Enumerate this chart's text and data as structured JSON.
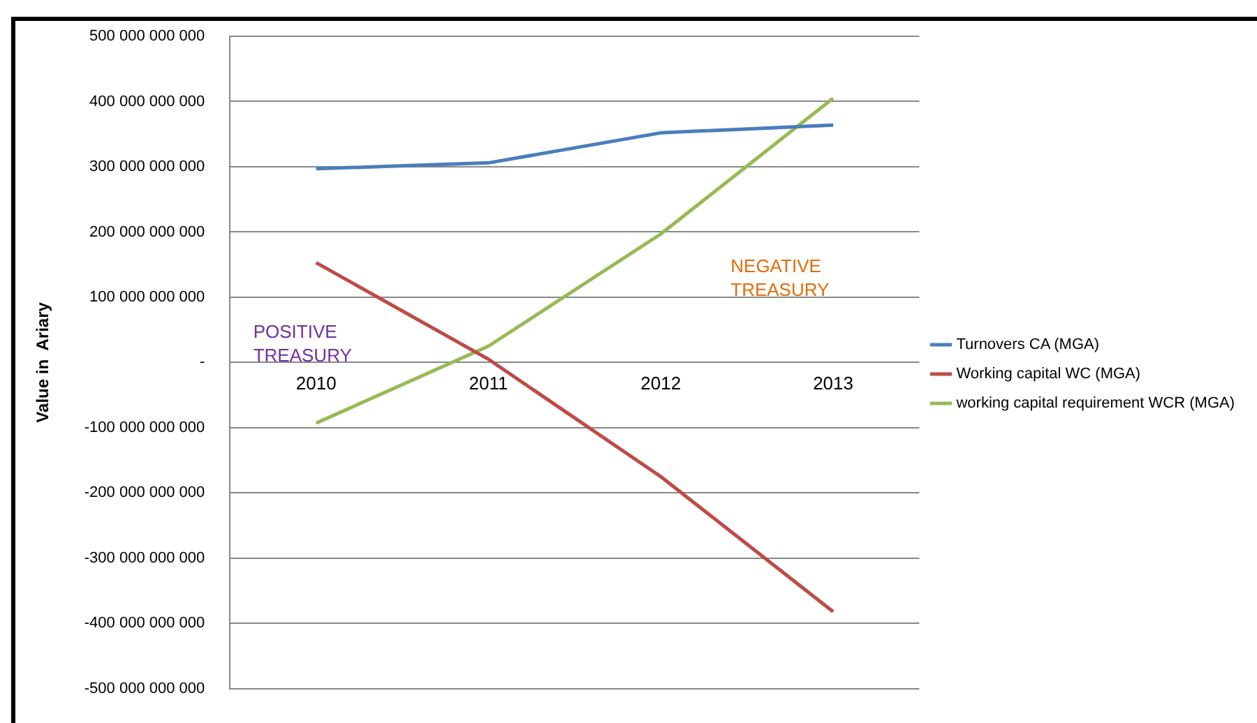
{
  "chart_data": {
    "type": "line",
    "ylabel": "Value in  Ariary",
    "categories": [
      "2010",
      "2011",
      "2012",
      "2013"
    ],
    "series": [
      {
        "name": "Turnovers CA (MGA)",
        "color": "#4a7ebb",
        "values": [
          297000000000,
          306000000000,
          352000000000,
          364000000000
        ]
      },
      {
        "name": "Working capital WC (MGA)",
        "color": "#be4b48",
        "values": [
          153000000000,
          5000000000,
          -175000000000,
          -382000000000
        ]
      },
      {
        "name": "working capital requirement WCR (MGA)",
        "color": "#98b954",
        "values": [
          -93000000000,
          25000000000,
          197000000000,
          405000000000
        ]
      }
    ],
    "ylim": [
      -500000000000,
      500000000000
    ],
    "yticks": [
      {
        "value": -500000000000,
        "label": "-500 000 000 000"
      },
      {
        "value": -400000000000,
        "label": "-400 000 000 000"
      },
      {
        "value": -300000000000,
        "label": "-300 000 000 000"
      },
      {
        "value": -200000000000,
        "label": "-200 000 000 000"
      },
      {
        "value": -100000000000,
        "label": "-100 000 000 000"
      },
      {
        "value": 0,
        "label": "-"
      },
      {
        "value": 100000000000,
        "label": "100 000 000 000"
      },
      {
        "value": 200000000000,
        "label": "200 000 000 000"
      },
      {
        "value": 300000000000,
        "label": "300 000 000 000"
      },
      {
        "value": 400000000000,
        "label": "400 000 000 000"
      },
      {
        "value": 500000000000,
        "label": "500 000 000 000"
      }
    ],
    "grid": "y",
    "legend": "right",
    "marker": "none",
    "line_style": "solid",
    "annotations": [
      "POSITIVE TREASURY",
      "NEGATIVE TREASURY"
    ]
  }
}
